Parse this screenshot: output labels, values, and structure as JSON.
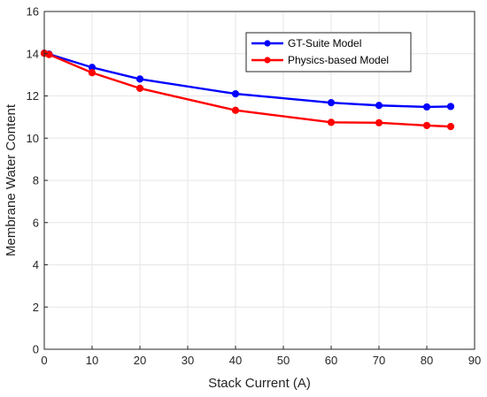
{
  "chart_data": {
    "type": "line",
    "title": "",
    "xlabel": "Stack Current (A)",
    "ylabel": "Membrane Water Content",
    "xlim": [
      0,
      90
    ],
    "ylim": [
      0,
      16
    ],
    "xticks": [
      0,
      10,
      20,
      30,
      40,
      50,
      60,
      70,
      80,
      90
    ],
    "yticks": [
      0,
      2,
      4,
      6,
      8,
      10,
      12,
      14,
      16
    ],
    "grid": true,
    "legend_position": "top-right",
    "series": [
      {
        "name": "GT-Suite Model",
        "color": "#0000ff",
        "marker": "circle",
        "x": [
          0,
          1,
          10,
          20,
          40,
          60,
          70,
          80,
          85
        ],
        "y": [
          14.02,
          13.98,
          13.35,
          12.8,
          12.1,
          11.68,
          11.55,
          11.48,
          11.5
        ]
      },
      {
        "name": "Physics-based Model",
        "color": "#ff0000",
        "marker": "circle",
        "x": [
          0,
          1,
          10,
          20,
          40,
          60,
          70,
          80,
          85
        ],
        "y": [
          14.02,
          13.96,
          13.1,
          12.36,
          11.32,
          10.75,
          10.73,
          10.6,
          10.55
        ]
      }
    ]
  }
}
